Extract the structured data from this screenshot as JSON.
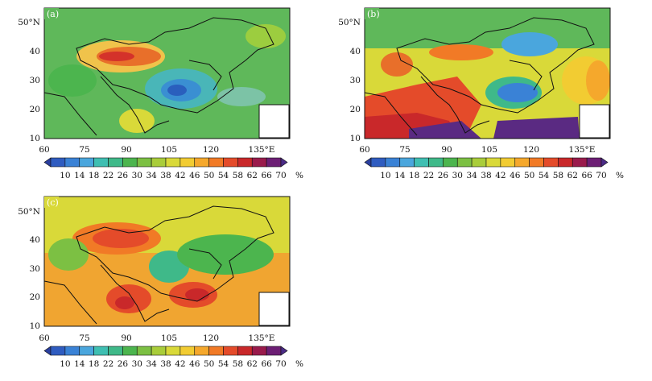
{
  "colorbar": {
    "labels": [
      "10",
      "14",
      "18",
      "22",
      "26",
      "30",
      "34",
      "38",
      "42",
      "46",
      "50",
      "54",
      "58",
      "62",
      "66",
      "70"
    ],
    "unit": "%",
    "colors": [
      "#2a3f9f",
      "#2f5cc0",
      "#3a82d6",
      "#4aa6dd",
      "#3fbfb2",
      "#3fb989",
      "#4cb54e",
      "#7cc043",
      "#a9cd3a",
      "#d9d939",
      "#f2cc32",
      "#f5a82c",
      "#f17a26",
      "#e44b2a",
      "#c9282a",
      "#9a1b4c",
      "#6d1f75",
      "#4a2a86"
    ]
  },
  "panels": [
    {
      "id": "a",
      "label": "(a)",
      "bg": "#5fb85a"
    },
    {
      "id": "b",
      "label": "(b)",
      "bg": "#5fb85a"
    },
    {
      "id": "c",
      "label": "(c)",
      "bg": "#f0a531"
    }
  ],
  "axes": {
    "x_ticks": [
      "60",
      "75",
      "90",
      "105",
      "120",
      "135°E"
    ],
    "y_ticks": [
      "50°N",
      "40",
      "30",
      "20",
      "10"
    ]
  }
}
